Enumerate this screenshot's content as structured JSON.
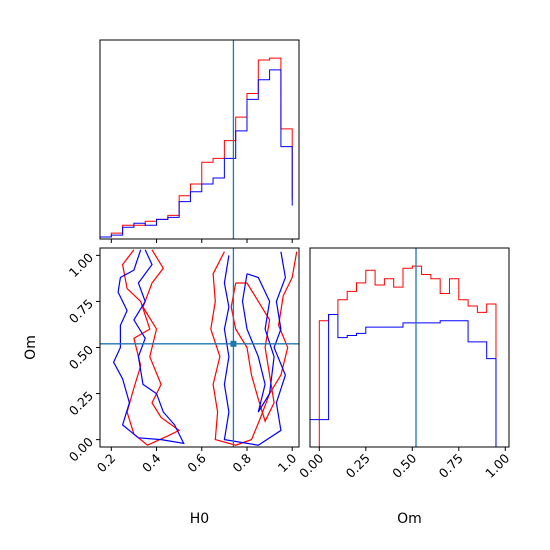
{
  "chart_data": {
    "type": "corner",
    "parameters": [
      "H0",
      "Om"
    ],
    "truths": {
      "H0": 0.74,
      "Om": 0.52
    },
    "colors": {
      "red_series": "#ff0000",
      "blue_series": "#0000ff",
      "truth": "#1f77b4"
    },
    "panels": [
      {
        "id": "hist-H0",
        "type": "histogram",
        "param": "H0",
        "xlim": [
          0.15,
          1.03
        ],
        "y_ticks_shown": false,
        "edges": [
          0.0,
          0.05,
          0.1,
          0.15,
          0.2,
          0.25,
          0.3,
          0.35,
          0.4,
          0.45,
          0.5,
          0.55,
          0.6,
          0.65,
          0.7,
          0.75,
          0.8,
          0.85,
          0.9,
          0.95,
          1.0
        ],
        "series": [
          {
            "color": "red",
            "counts": [
              0,
              0,
              0,
              1,
              3,
              7,
              7,
              9,
              10,
              12,
              22,
              28,
              39,
              41,
              50,
              62,
              74,
              91,
              92,
              56,
              20
            ]
          },
          {
            "color": "blue",
            "counts": [
              0,
              0,
              0,
              1,
              2,
              6,
              8,
              7,
              10,
              11,
              19,
              24,
              28,
              31,
              41,
              55,
              71,
              81,
              86,
              47,
              17
            ]
          }
        ]
      },
      {
        "id": "hist-Om",
        "type": "histogram",
        "param": "Om",
        "xlim": [
          -0.05,
          1.02
        ],
        "y_ticks_shown": false,
        "edges": [
          -0.05,
          0.0,
          0.05,
          0.1,
          0.15,
          0.2,
          0.25,
          0.3,
          0.35,
          0.4,
          0.45,
          0.5,
          0.55,
          0.6,
          0.65,
          0.7,
          0.75,
          0.8,
          0.85,
          0.9,
          0.95,
          1.0
        ],
        "series": [
          {
            "color": "red",
            "counts": [
              0,
              60,
              63,
              70,
              74,
              78,
              84,
              77,
              80,
              76,
              85,
              86,
              82,
              80,
              73,
              80,
              70,
              67,
              64,
              68,
              0
            ]
          },
          {
            "color": "blue",
            "counts": [
              13,
              13,
              63,
              52,
              53,
              54,
              57,
              57,
              57,
              57,
              59,
              59,
              59,
              59,
              60,
              60,
              60,
              50,
              50,
              42,
              0
            ]
          }
        ]
      },
      {
        "id": "contour-H0-Om",
        "type": "contour",
        "x": "H0",
        "y": "Om",
        "xlim": [
          0.15,
          1.03
        ],
        "ylim": [
          -0.04,
          1.04
        ],
        "series": [
          {
            "color": "red",
            "contours": [
              [
                [
                  0.3,
                  1.03
                ],
                [
                  0.25,
                  0.95
                ],
                [
                  0.27,
                  0.82
                ],
                [
                  0.33,
                  0.75
                ],
                [
                  0.37,
                  0.6
                ],
                [
                  0.3,
                  0.55
                ],
                [
                  0.33,
                  0.4
                ],
                [
                  0.3,
                  0.28
                ],
                [
                  0.27,
                  0.15
                ],
                [
                  0.3,
                  0.03
                ],
                [
                  0.36,
                  -0.03
                ],
                [
                  0.45,
                  0.02
                ],
                [
                  0.5,
                  0.05
                ],
                [
                  0.42,
                  0.12
                ],
                [
                  0.38,
                  0.2
                ],
                [
                  0.42,
                  0.3
                ],
                [
                  0.37,
                  0.45
                ],
                [
                  0.4,
                  0.6
                ],
                [
                  0.34,
                  0.72
                ],
                [
                  0.38,
                  0.85
                ],
                [
                  0.43,
                  0.93
                ],
                [
                  0.38,
                  1.03
                ]
              ],
              [
                [
                  0.7,
                  1.02
                ],
                [
                  0.65,
                  0.9
                ],
                [
                  0.66,
                  0.75
                ],
                [
                  0.64,
                  0.6
                ],
                [
                  0.68,
                  0.45
                ],
                [
                  0.65,
                  0.3
                ],
                [
                  0.67,
                  0.15
                ],
                [
                  0.66,
                  0.0
                ],
                [
                  0.75,
                  -0.03
                ],
                [
                  0.82,
                  0.0
                ],
                [
                  0.86,
                  0.12
                ],
                [
                  0.9,
                  0.25
                ],
                [
                  0.95,
                  0.35
                ],
                [
                  0.98,
                  0.5
                ],
                [
                  0.94,
                  0.62
                ],
                [
                  0.96,
                  0.78
                ],
                [
                  1.0,
                  0.88
                ],
                [
                  1.02,
                  1.02
                ]
              ],
              [
                [
                  0.75,
                  0.85
                ],
                [
                  0.73,
                  0.72
                ],
                [
                  0.75,
                  0.6
                ],
                [
                  0.8,
                  0.5
                ],
                [
                  0.82,
                  0.35
                ],
                [
                  0.85,
                  0.22
                ],
                [
                  0.88,
                  0.1
                ],
                [
                  0.92,
                  0.2
                ],
                [
                  0.9,
                  0.35
                ],
                [
                  0.88,
                  0.5
                ],
                [
                  0.9,
                  0.65
                ],
                [
                  0.85,
                  0.75
                ],
                [
                  0.8,
                  0.85
                ],
                [
                  0.75,
                  0.85
                ]
              ]
            ]
          },
          {
            "color": "blue",
            "contours": [
              [
                [
                  0.33,
                  1.03
                ],
                [
                  0.3,
                  0.92
                ],
                [
                  0.24,
                  0.88
                ],
                [
                  0.23,
                  0.8
                ],
                [
                  0.27,
                  0.7
                ],
                [
                  0.24,
                  0.62
                ],
                [
                  0.24,
                  0.5
                ],
                [
                  0.21,
                  0.42
                ],
                [
                  0.25,
                  0.33
                ],
                [
                  0.28,
                  0.2
                ],
                [
                  0.25,
                  0.08
                ],
                [
                  0.32,
                  0.01
                ],
                [
                  0.42,
                  0.0
                ],
                [
                  0.52,
                  -0.02
                ],
                [
                  0.48,
                  0.08
                ],
                [
                  0.43,
                  0.15
                ],
                [
                  0.4,
                  0.25
                ],
                [
                  0.34,
                  0.3
                ],
                [
                  0.32,
                  0.45
                ],
                [
                  0.35,
                  0.55
                ],
                [
                  0.3,
                  0.65
                ],
                [
                  0.35,
                  0.75
                ],
                [
                  0.32,
                  0.85
                ],
                [
                  0.38,
                  0.95
                ],
                [
                  0.35,
                  1.03
                ]
              ],
              [
                [
                  0.72,
                  1.0
                ],
                [
                  0.7,
                  0.85
                ],
                [
                  0.72,
                  0.72
                ],
                [
                  0.7,
                  0.6
                ],
                [
                  0.72,
                  0.45
                ],
                [
                  0.7,
                  0.3
                ],
                [
                  0.72,
                  0.15
                ],
                [
                  0.7,
                  0.0
                ],
                [
                  0.85,
                  -0.03
                ],
                [
                  0.95,
                  0.05
                ],
                [
                  0.93,
                  0.2
                ],
                [
                  0.97,
                  0.35
                ],
                [
                  0.92,
                  0.5
                ],
                [
                  0.95,
                  0.6
                ],
                [
                  0.93,
                  0.75
                ],
                [
                  0.97,
                  0.88
                ],
                [
                  0.95,
                  1.02
                ]
              ],
              [
                [
                  0.8,
                  0.9
                ],
                [
                  0.78,
                  0.75
                ],
                [
                  0.8,
                  0.6
                ],
                [
                  0.85,
                  0.45
                ],
                [
                  0.88,
                  0.3
                ],
                [
                  0.85,
                  0.15
                ],
                [
                  0.9,
                  0.25
                ],
                [
                  0.92,
                  0.45
                ],
                [
                  0.88,
                  0.6
                ],
                [
                  0.9,
                  0.75
                ],
                [
                  0.85,
                  0.88
                ],
                [
                  0.8,
                  0.9
                ]
              ]
            ]
          }
        ]
      }
    ],
    "axes": {
      "H0": {
        "label": "H0",
        "ticks": [
          0.2,
          0.4,
          0.6,
          0.8,
          1.0
        ],
        "tick_labels": [
          "0.2",
          "0.4",
          "0.6",
          "0.8",
          "1.0"
        ]
      },
      "Om_x": {
        "label": "Om",
        "ticks": [
          0.0,
          0.25,
          0.5,
          0.75,
          1.0
        ],
        "tick_labels": [
          "0.00",
          "0.25",
          "0.50",
          "0.75",
          "1.00"
        ]
      },
      "Om_y": {
        "label": "Om",
        "ticks": [
          0.0,
          0.25,
          0.5,
          0.75,
          1.0
        ],
        "tick_labels": [
          "0.00",
          "0.25",
          "0.50",
          "0.75",
          "1.00"
        ]
      }
    }
  }
}
